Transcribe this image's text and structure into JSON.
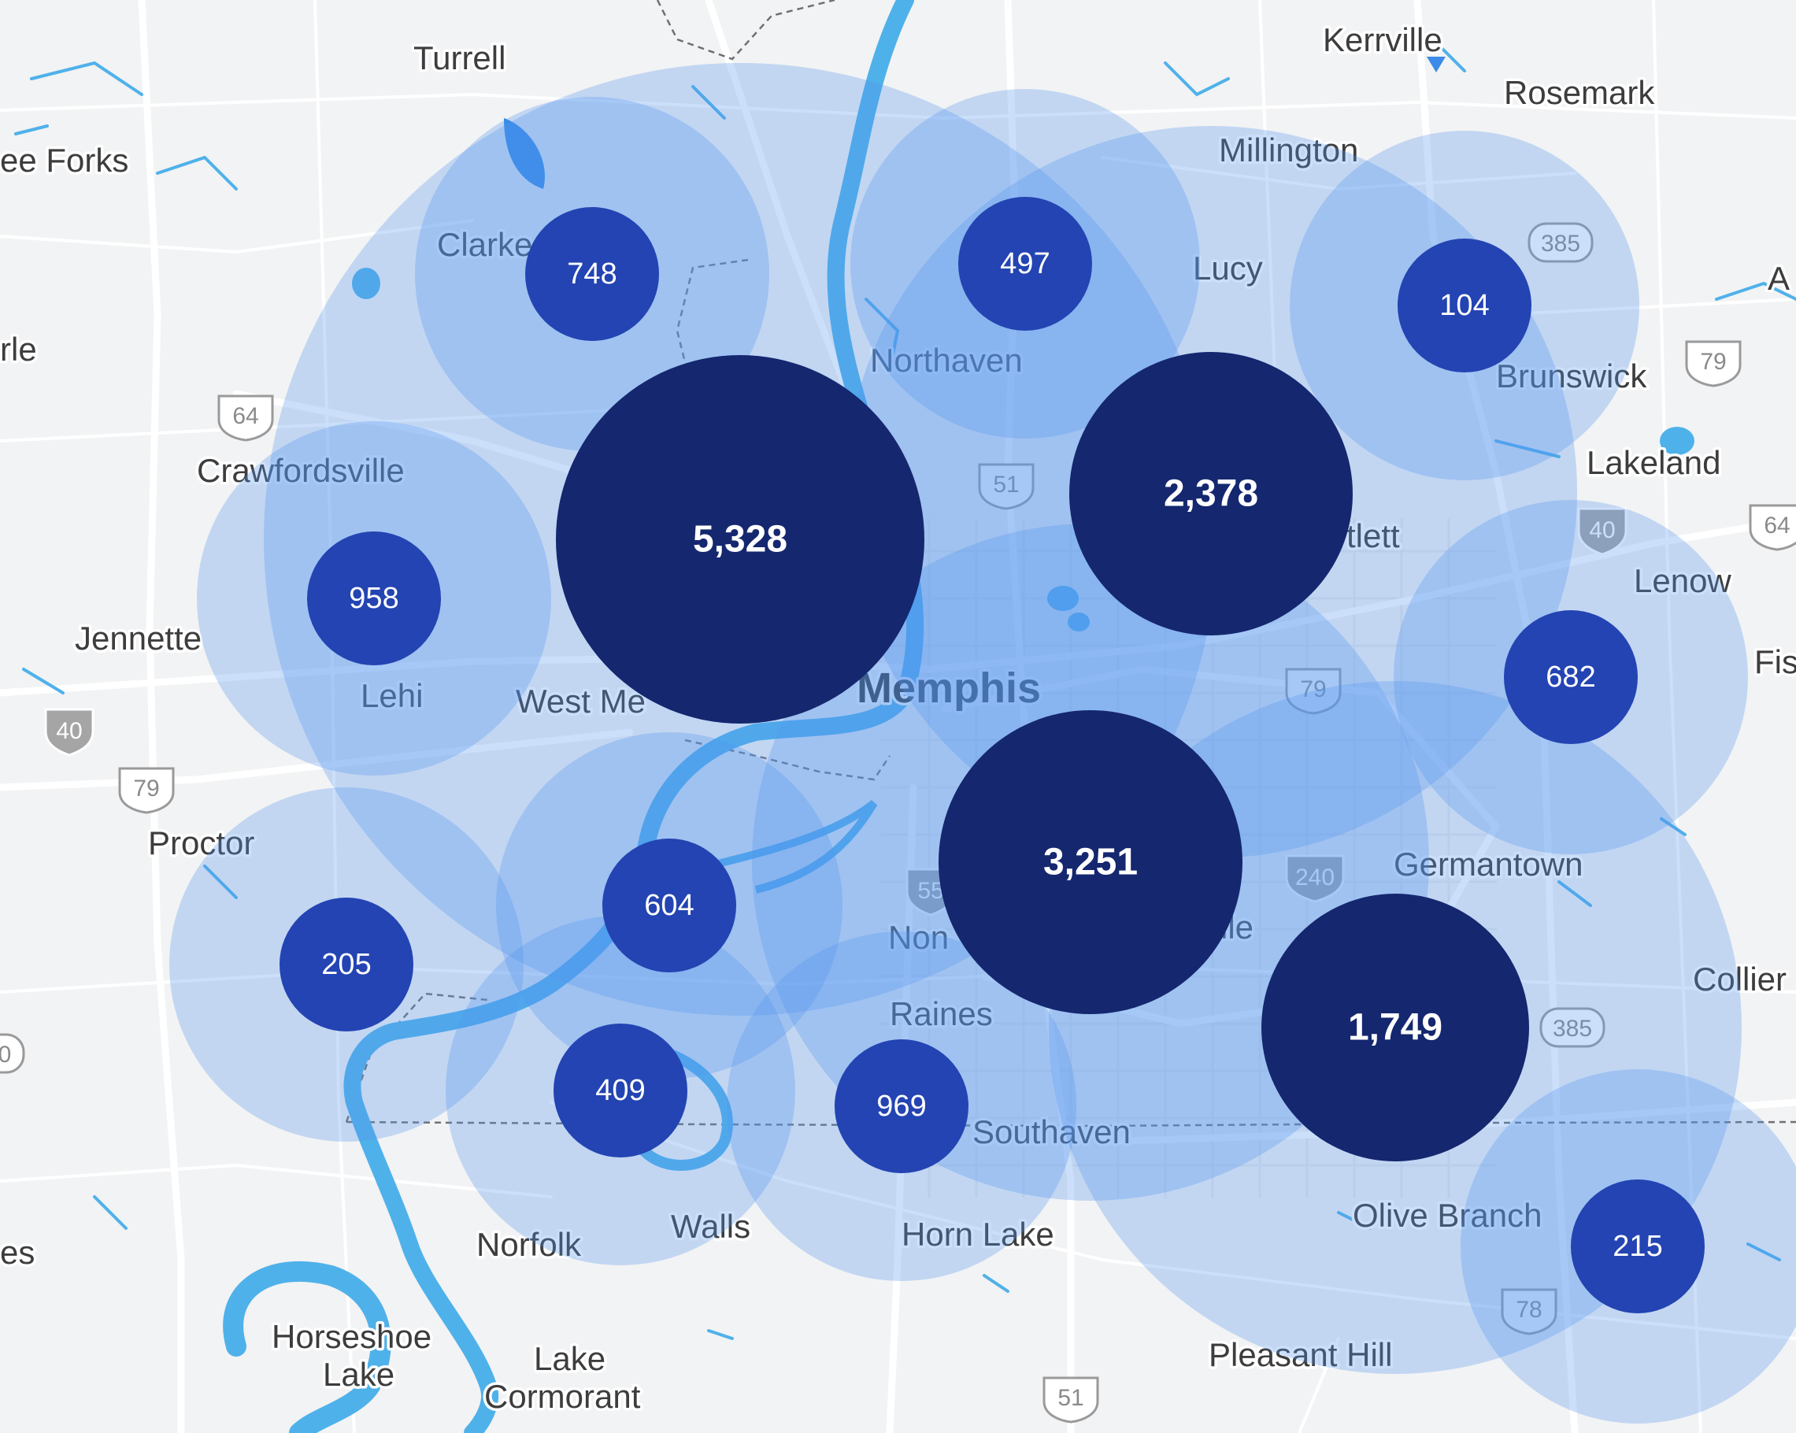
{
  "map": {
    "colors": {
      "land": "#f2f3f4",
      "water": "#4fb1ea",
      "road": "#ffffff",
      "cluster_small": "#2344b2",
      "cluster_large": "#14276f",
      "halo": "#5296ee"
    },
    "places": {
      "turrell": "Turrell",
      "three_forks": "ee Forks",
      "clarkedale": "Clarke",
      "earle": "rle",
      "crawfordsville": "Crawfordsville",
      "jennette": "Jennette",
      "lehi": "Lehi",
      "west_memphis": "West Me",
      "proctor": "Proctor",
      "memphis": "Memphis",
      "northaven": "Northaven",
      "millington": "Millington",
      "kerrville": "Kerrville",
      "rosemark": "Rosemark",
      "lucy": "Lucy",
      "brunswick": "Brunswick",
      "arlington": "A",
      "lakeland": "Lakeland",
      "bartlett": "tlett",
      "lenow": "Lenow",
      "fisherville": "Fis",
      "germantown": "Germantown",
      "collierville": "Collier",
      "nonconnah": "Non",
      "whitehaven": "lle",
      "raines": "Raines",
      "southaven": "Southaven",
      "horn_lake": "Horn Lake",
      "walls": "Walls",
      "norfolk": "Norfolk",
      "olive_branch": "Olive Branch",
      "pleasant_hill": "Pleasant Hill",
      "horseshoe_lake_1": "Horseshoe",
      "horseshoe_lake_2": "Lake",
      "lake_cormorant_1": "Lake",
      "lake_cormorant_2": "Cormorant",
      "hughes": "es"
    },
    "shields": {
      "us64_west": "64",
      "i40_west": "40",
      "us79_west": "79",
      "us51_north": "51",
      "us79_central": "79",
      "i55": "55",
      "i240": "240",
      "sr385_north": "385",
      "sr385_south": "385",
      "us79_east": "79",
      "i40_east": "40",
      "us64_east": "64",
      "us78": "78",
      "us51_south": "51",
      "edge_west": "0"
    },
    "clusters": [
      {
        "id": "clarkedale",
        "count": "748",
        "size": "small"
      },
      {
        "id": "crawfordsville",
        "count": "958",
        "size": "small"
      },
      {
        "id": "west-memphis",
        "count": "5,328",
        "size": "large"
      },
      {
        "id": "northaven",
        "count": "497",
        "size": "small"
      },
      {
        "id": "bartlett",
        "count": "2,378",
        "size": "large"
      },
      {
        "id": "brunswick",
        "count": "104",
        "size": "small"
      },
      {
        "id": "lenow",
        "count": "682",
        "size": "small"
      },
      {
        "id": "proctor",
        "count": "205",
        "size": "small"
      },
      {
        "id": "river-south",
        "count": "604",
        "size": "small"
      },
      {
        "id": "memphis-south",
        "count": "3,251",
        "size": "large"
      },
      {
        "id": "germantown",
        "count": "1,749",
        "size": "large"
      },
      {
        "id": "norfolk",
        "count": "409",
        "size": "small"
      },
      {
        "id": "southaven",
        "count": "969",
        "size": "small"
      },
      {
        "id": "olive-branch",
        "count": "215",
        "size": "small"
      }
    ]
  }
}
